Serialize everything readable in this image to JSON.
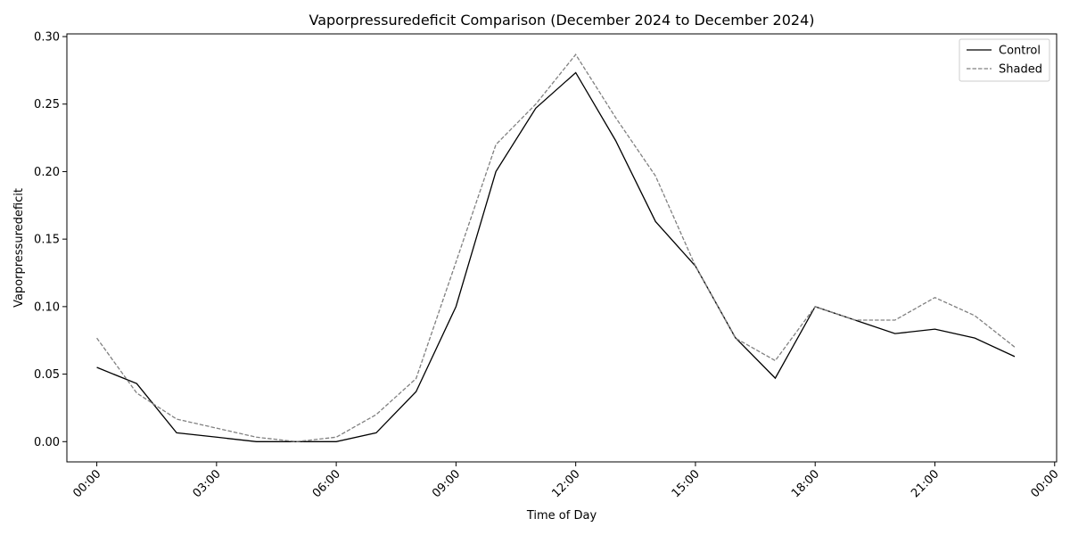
{
  "chart_data": {
    "type": "line",
    "title": "Vaporpressuredeficit Comparison (December 2024 to December 2024)",
    "xlabel": "Time of Day",
    "ylabel": "Vaporpressuredeficit",
    "x": [
      "00:00",
      "01:00",
      "02:00",
      "03:00",
      "04:00",
      "05:00",
      "06:00",
      "07:00",
      "08:00",
      "09:00",
      "10:00",
      "11:00",
      "12:00",
      "13:00",
      "14:00",
      "15:00",
      "16:00",
      "17:00",
      "18:00",
      "19:00",
      "20:00",
      "21:00",
      "22:00",
      "23:00"
    ],
    "xticks": [
      "00:00",
      "03:00",
      "06:00",
      "09:00",
      "12:00",
      "15:00",
      "18:00",
      "21:00",
      "00:00"
    ],
    "yticks": [
      "0.00",
      "0.05",
      "0.10",
      "0.15",
      "0.20",
      "0.25",
      "0.30"
    ],
    "xlim_hours": [
      -0.75,
      24.05
    ],
    "ylim": [
      -0.015,
      0.302
    ],
    "grid": false,
    "legend_position": "top-right",
    "series": [
      {
        "name": "Control",
        "color": "#000000",
        "style": "solid",
        "values": [
          0.055,
          0.043,
          0.0065,
          0.0033,
          0.0,
          0.0,
          0.0,
          0.0065,
          0.037,
          0.1,
          0.2,
          0.247,
          0.2733,
          0.223,
          0.163,
          0.13,
          0.077,
          0.047,
          0.1,
          0.09,
          0.08,
          0.0833,
          0.0767,
          0.063
        ]
      },
      {
        "name": "Shaded",
        "color": "#808080",
        "style": "dashed",
        "values": [
          0.0767,
          0.036,
          0.0167,
          0.01,
          0.0033,
          0.0,
          0.0033,
          0.02,
          0.0467,
          0.133,
          0.22,
          0.25,
          0.2867,
          0.24,
          0.1967,
          0.13,
          0.0767,
          0.06,
          0.1,
          0.09,
          0.09,
          0.1067,
          0.0933,
          0.07
        ]
      }
    ]
  }
}
